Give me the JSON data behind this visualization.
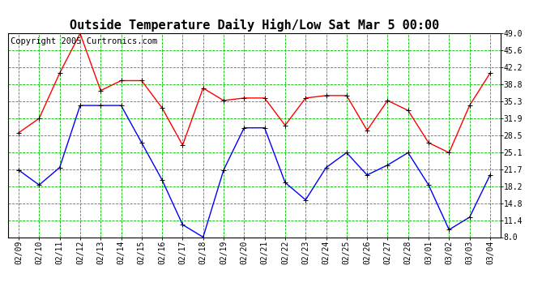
{
  "title": "Outside Temperature Daily High/Low Sat Mar 5 00:00",
  "copyright": "Copyright 2005 Curtronics.com",
  "x_labels": [
    "02/09",
    "02/10",
    "02/11",
    "02/12",
    "02/13",
    "02/14",
    "02/15",
    "02/16",
    "02/17",
    "02/18",
    "02/19",
    "02/20",
    "02/21",
    "02/22",
    "02/23",
    "02/24",
    "02/25",
    "02/26",
    "02/27",
    "02/28",
    "03/01",
    "03/02",
    "03/03",
    "03/04"
  ],
  "high_values": [
    29.0,
    31.9,
    41.0,
    49.0,
    37.5,
    39.5,
    39.5,
    34.0,
    26.5,
    38.0,
    35.5,
    36.0,
    36.0,
    30.5,
    36.0,
    36.5,
    36.5,
    29.5,
    35.5,
    33.5,
    27.0,
    25.0,
    34.5,
    41.0
  ],
  "low_values": [
    21.5,
    18.5,
    22.0,
    34.5,
    34.5,
    34.5,
    27.0,
    19.5,
    10.5,
    8.0,
    21.5,
    30.0,
    30.0,
    19.0,
    15.5,
    22.0,
    25.0,
    20.5,
    22.5,
    25.0,
    18.5,
    9.5,
    12.0,
    20.5
  ],
  "high_color": "#ff0000",
  "low_color": "#0000ff",
  "bg_color": "#ffffff",
  "plot_bg_color": "#ffffff",
  "grid_color": "#00bb00",
  "y_ticks": [
    8.0,
    11.4,
    14.8,
    18.2,
    21.7,
    25.1,
    28.5,
    31.9,
    35.3,
    38.8,
    42.2,
    45.6,
    49.0
  ],
  "y_min": 8.0,
  "y_max": 49.0,
  "title_fontsize": 11,
  "copyright_fontsize": 7.5
}
